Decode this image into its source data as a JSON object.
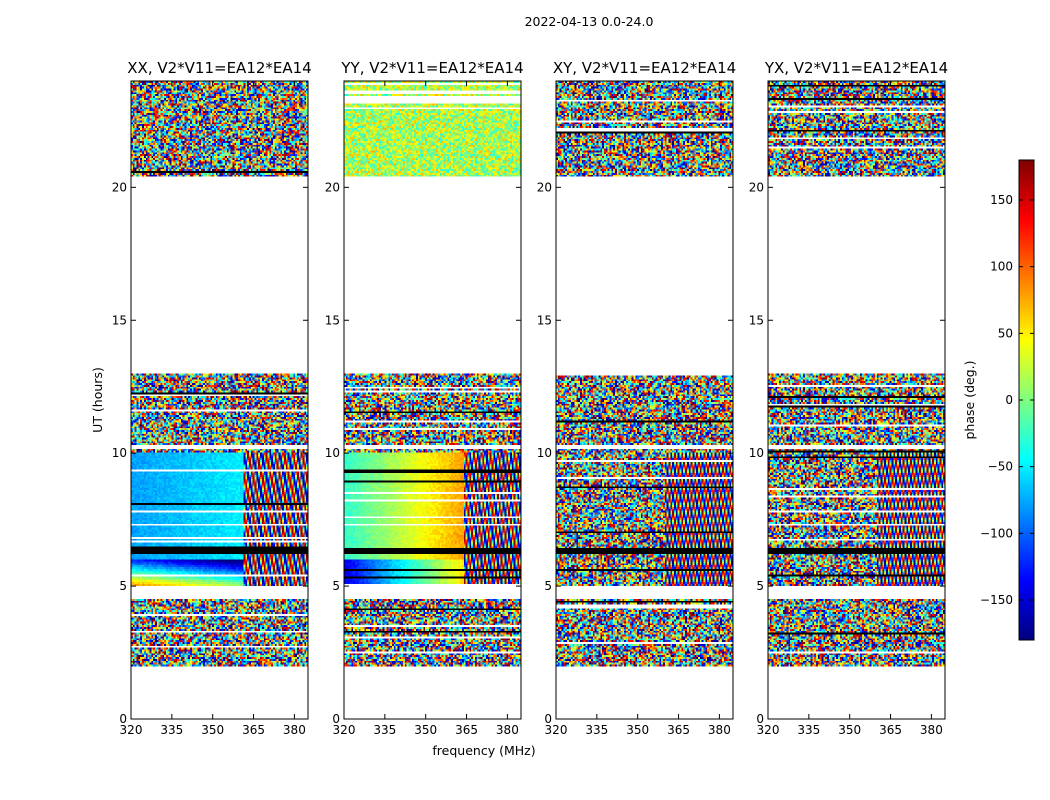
{
  "figure": {
    "suptitle": "2022-04-13 0.0-24.0",
    "ylabel": "UT (hours)",
    "xlabel": "frequency (MHz)"
  },
  "colorbar": {
    "label": "phase (deg.)",
    "range": [
      -180,
      180
    ],
    "ticks": [
      -150,
      -100,
      -50,
      0,
      50,
      100,
      150
    ],
    "tick_labels": [
      "−150",
      "−100",
      "−50",
      "0",
      "50",
      "100",
      "150"
    ],
    "colormap": "jet",
    "colors": [
      "#00007f",
      "#0000ff",
      "#007fff",
      "#00ffff",
      "#7fff7f",
      "#ffff00",
      "#ff7f00",
      "#ff0000",
      "#7f0000"
    ]
  },
  "chart_data": {
    "type": "heatmap",
    "x_range": [
      320,
      385
    ],
    "x_ticks": [
      320,
      335,
      350,
      365,
      380
    ],
    "y_range": [
      0,
      24
    ],
    "y_ticks": [
      0,
      5,
      10,
      15,
      20
    ],
    "data_blocks_ut": [
      [
        2.0,
        4.5
      ],
      [
        5.0,
        10.2
      ],
      [
        10.3,
        13.0
      ],
      [
        20.4,
        24.0
      ]
    ],
    "flagged_black_band_ut": [
      6.2,
      6.4
    ],
    "panels": [
      {
        "title": "XX, V2*V11=EA12*EA14",
        "pattern": "smooth-blue"
      },
      {
        "title": "YY, V2*V11=EA12*EA14",
        "pattern": "smooth-green"
      },
      {
        "title": "XY, V2*V11=EA12*EA14",
        "pattern": "noise"
      },
      {
        "title": "YX, V2*V11=EA12*EA14",
        "pattern": "noise"
      }
    ]
  }
}
